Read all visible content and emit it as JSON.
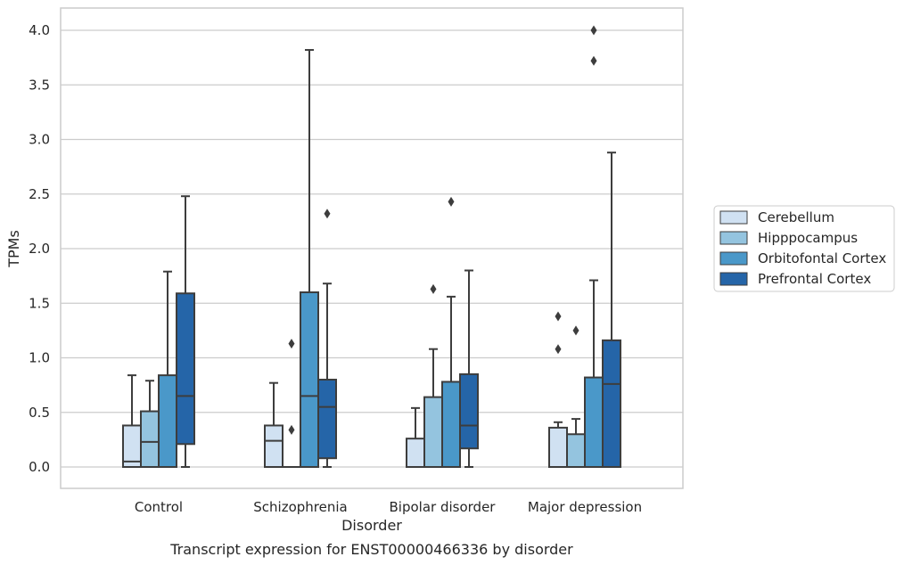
{
  "chart_data": {
    "type": "box",
    "title": "",
    "caption": "Transcript expression for ENST00000466336 by disorder",
    "xlabel": "Disorder",
    "ylabel": "TPMs",
    "ylim": [
      -0.2,
      4.2
    ],
    "yticks": [
      "0.0",
      "0.5",
      "1.0",
      "1.5",
      "2.0",
      "2.5",
      "3.0",
      "3.5",
      "4.0"
    ],
    "grid": "horizontal",
    "legend_position": "right",
    "categories": [
      "Control",
      "Schizophrenia",
      "Bipolar disorder",
      "Major depression"
    ],
    "series": [
      {
        "name": "Cerebellum",
        "color": "#d0e1f2",
        "boxes": [
          {
            "whisker_low": 0.0,
            "q1": 0.0,
            "median": 0.05,
            "q3": 0.38,
            "whisker_high": 0.84,
            "outliers": []
          },
          {
            "whisker_low": 0.0,
            "q1": 0.0,
            "median": 0.24,
            "q3": 0.38,
            "whisker_high": 0.77,
            "outliers": []
          },
          {
            "whisker_low": 0.0,
            "q1": 0.0,
            "median": 0.0,
            "q3": 0.26,
            "whisker_high": 0.54,
            "outliers": []
          },
          {
            "whisker_low": 0.0,
            "q1": 0.0,
            "median": 0.0,
            "q3": 0.36,
            "whisker_high": 0.41,
            "outliers": [
              1.08,
              1.38
            ]
          }
        ]
      },
      {
        "name": "Hipppocampus",
        "color": "#94c4df",
        "boxes": [
          {
            "whisker_low": 0.0,
            "q1": 0.0,
            "median": 0.23,
            "q3": 0.51,
            "whisker_high": 0.79,
            "outliers": []
          },
          {
            "whisker_low": 0.0,
            "q1": 0.0,
            "median": 0.0,
            "q3": 0.0,
            "whisker_high": 0.0,
            "outliers": [
              0.34,
              1.13
            ]
          },
          {
            "whisker_low": 0.0,
            "q1": 0.0,
            "median": 0.0,
            "q3": 0.64,
            "whisker_high": 1.08,
            "outliers": [
              1.63
            ]
          },
          {
            "whisker_low": 0.0,
            "q1": 0.0,
            "median": 0.0,
            "q3": 0.3,
            "whisker_high": 0.44,
            "outliers": [
              1.25
            ]
          }
        ]
      },
      {
        "name": "Orbitofontal Cortex",
        "color": "#4a98c9",
        "boxes": [
          {
            "whisker_low": 0.0,
            "q1": 0.0,
            "median": 0.0,
            "q3": 0.84,
            "whisker_high": 1.79,
            "outliers": []
          },
          {
            "whisker_low": 0.0,
            "q1": 0.0,
            "median": 0.65,
            "q3": 1.6,
            "whisker_high": 3.82,
            "outliers": []
          },
          {
            "whisker_low": 0.0,
            "q1": 0.0,
            "median": 0.0,
            "q3": 0.78,
            "whisker_high": 1.56,
            "outliers": [
              2.43
            ]
          },
          {
            "whisker_low": 0.0,
            "q1": 0.0,
            "median": 0.0,
            "q3": 0.82,
            "whisker_high": 1.71,
            "outliers": [
              3.72,
              4.0
            ]
          }
        ]
      },
      {
        "name": "Prefrontal Cortex",
        "color": "#2565a8",
        "boxes": [
          {
            "whisker_low": 0.0,
            "q1": 0.21,
            "median": 0.65,
            "q3": 1.59,
            "whisker_high": 2.48,
            "outliers": []
          },
          {
            "whisker_low": 0.0,
            "q1": 0.08,
            "median": 0.55,
            "q3": 0.8,
            "whisker_high": 1.68,
            "outliers": [
              2.32
            ]
          },
          {
            "whisker_low": 0.0,
            "q1": 0.17,
            "median": 0.38,
            "q3": 0.85,
            "whisker_high": 1.8,
            "outliers": []
          },
          {
            "whisker_low": 0.0,
            "q1": 0.0,
            "median": 0.76,
            "q3": 1.16,
            "whisker_high": 2.88,
            "outliers": []
          }
        ]
      }
    ]
  }
}
